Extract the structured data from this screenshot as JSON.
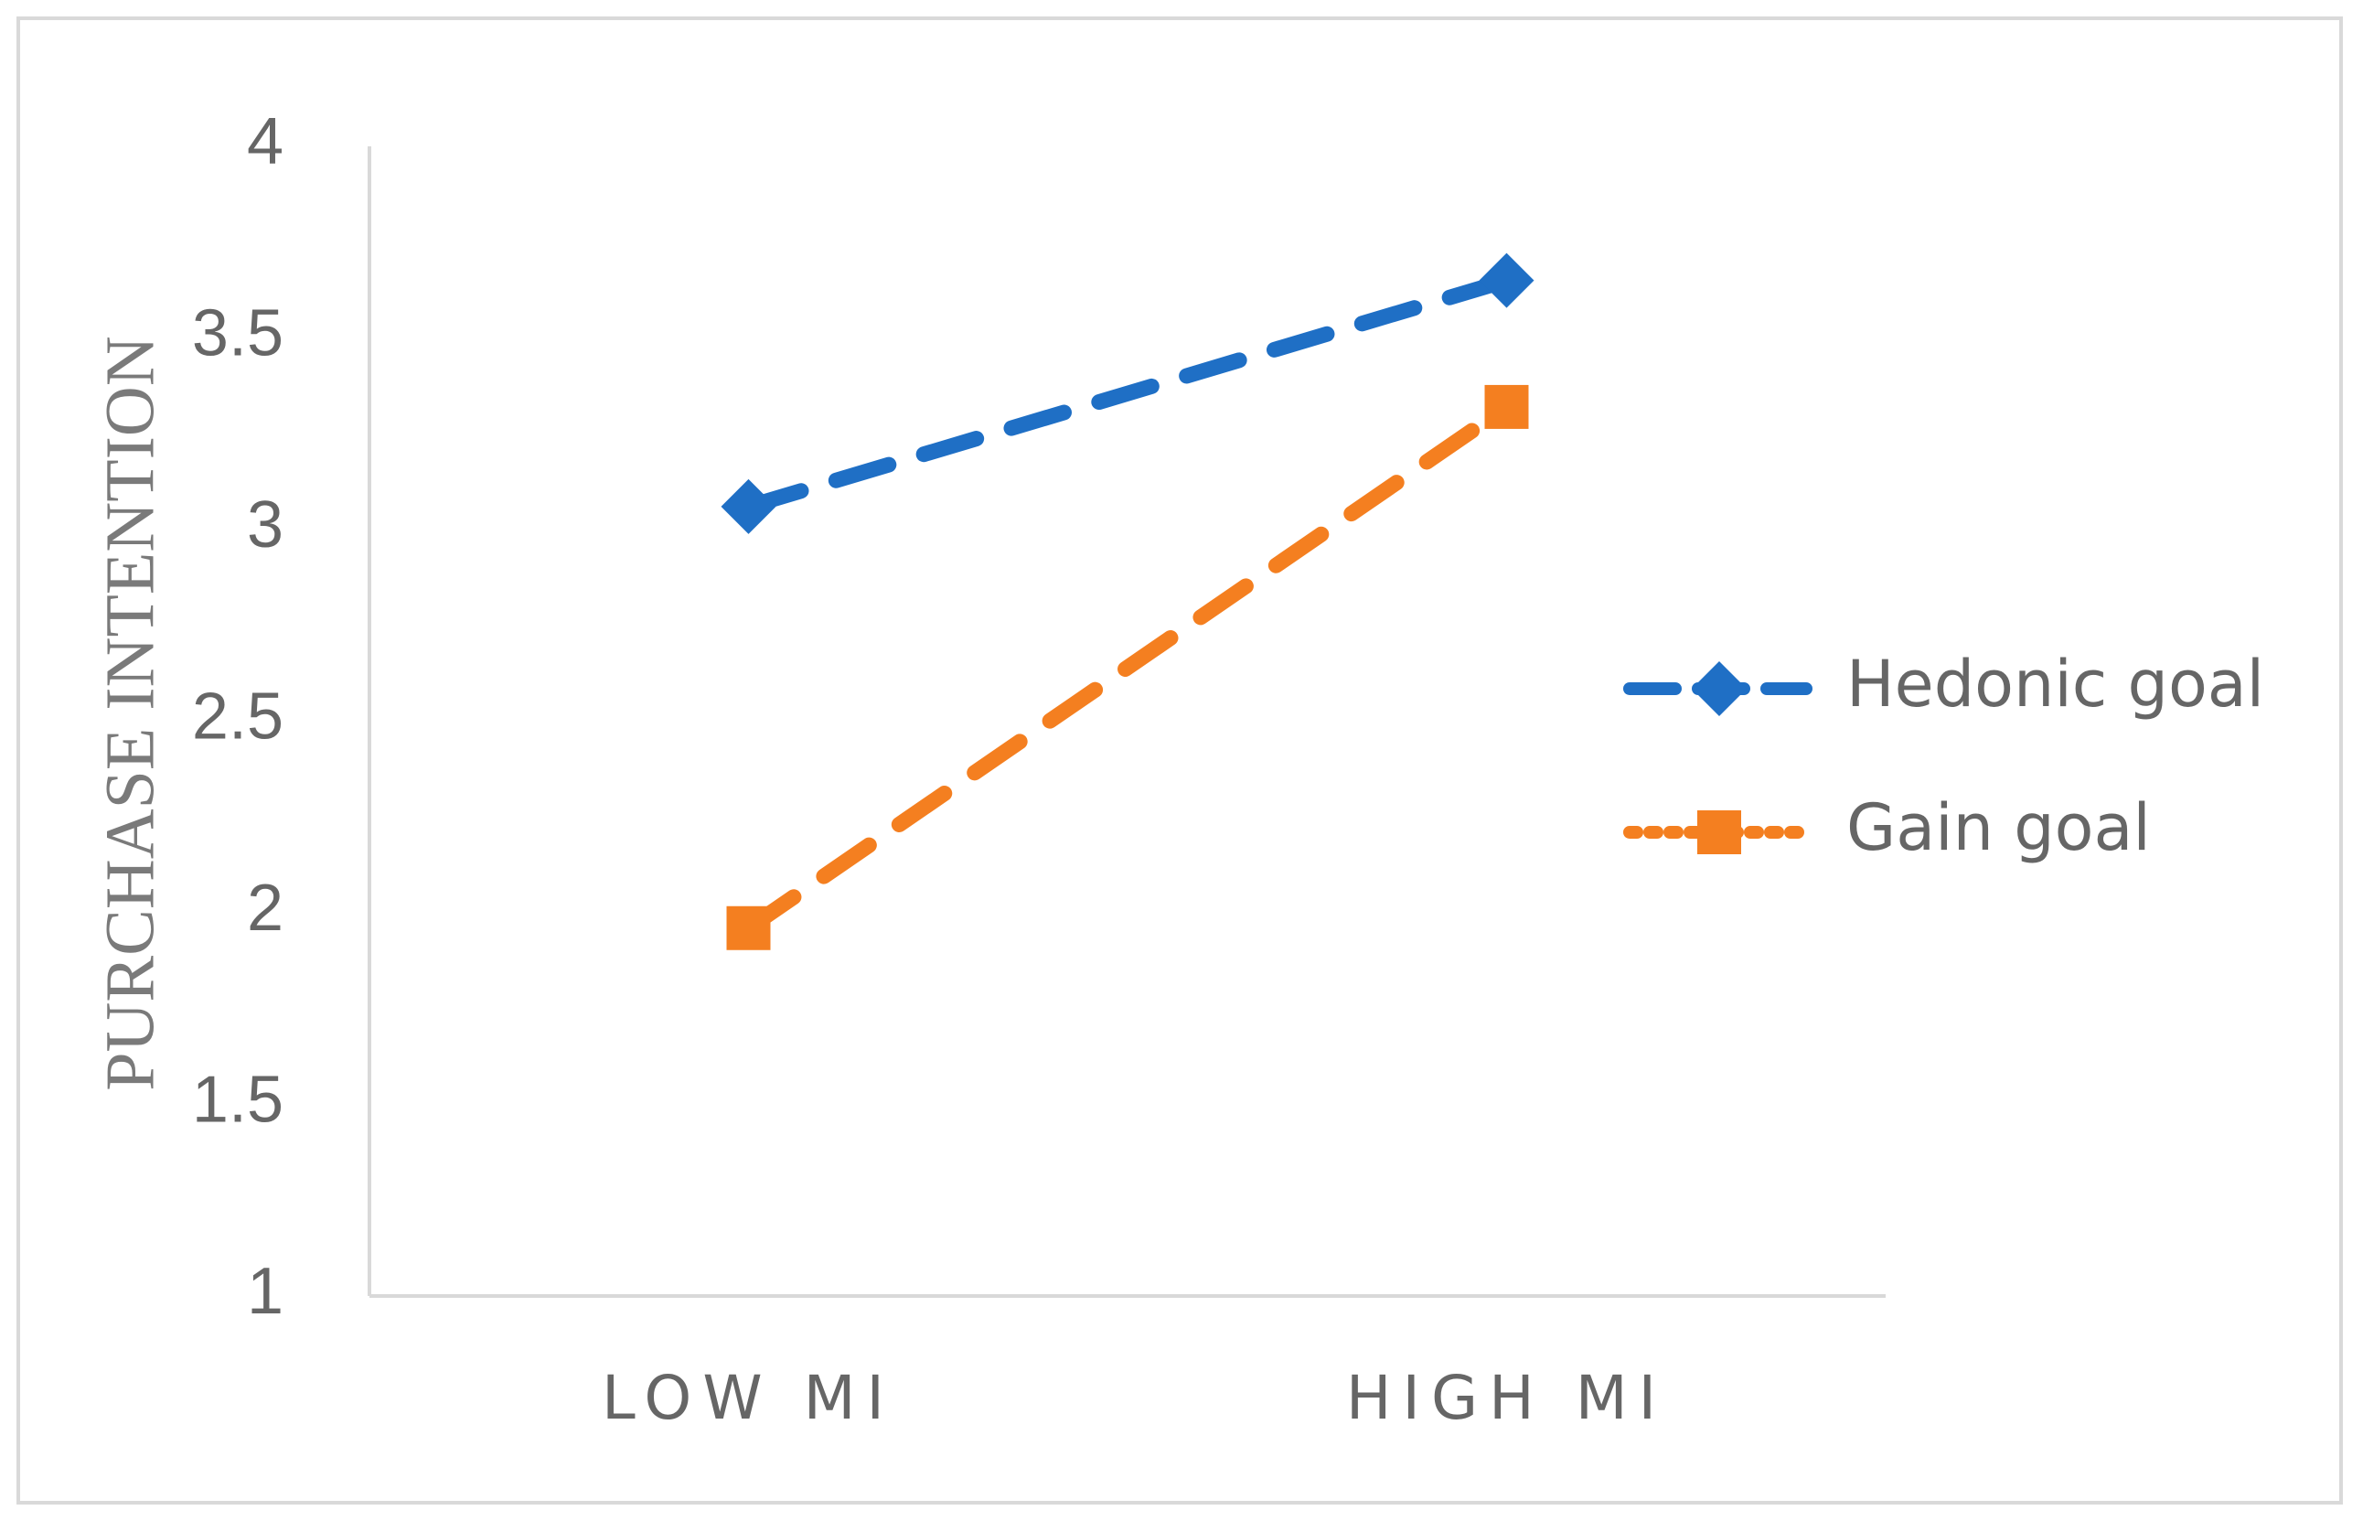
{
  "chart_data": {
    "type": "line",
    "y_label": "PURCHASE INTENTION",
    "categories": [
      "LOW MI",
      "HIGH MI"
    ],
    "series": [
      {
        "name": "Hedonic goal",
        "color": "#1f6fc5",
        "marker": "diamond",
        "values": [
          3.06,
          3.65
        ]
      },
      {
        "name": "Gain goal",
        "color": "#f47f20",
        "marker": "square",
        "values": [
          1.96,
          3.32
        ]
      }
    ],
    "ylim": [
      1,
      4
    ],
    "yticks": [
      1,
      1.5,
      2,
      2.5,
      3,
      3.5,
      4
    ],
    "grid": false,
    "legend": "right"
  }
}
